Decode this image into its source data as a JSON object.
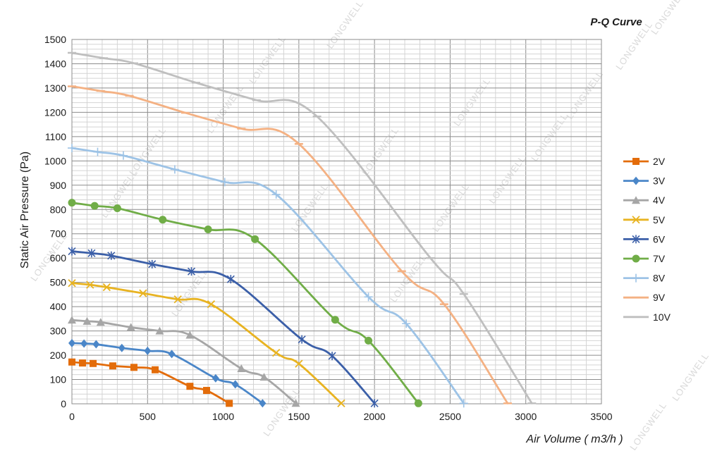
{
  "chart_data": {
    "type": "line",
    "title": "P-Q Curve",
    "xlabel": "Air Volume ( m3/h )",
    "ylabel": "Static Air Pressure  (Pa)",
    "xlim": [
      0,
      3500
    ],
    "ylim": [
      0,
      1500
    ],
    "xticks": [
      0,
      500,
      1000,
      1500,
      2000,
      2500,
      3000,
      3500
    ],
    "yticks": [
      0,
      100,
      200,
      300,
      400,
      500,
      600,
      700,
      800,
      900,
      1000,
      1100,
      1200,
      1300,
      1400,
      1500
    ],
    "grid": true,
    "legend_position": "right",
    "watermark": "LONGWELL",
    "series": [
      {
        "name": "2V",
        "color": "#E36C0A",
        "marker": "square",
        "x": [
          0,
          70,
          140,
          270,
          410,
          550,
          780,
          890,
          1040
        ],
        "y": [
          172,
          168,
          166,
          156,
          150,
          140,
          72,
          55,
          2
        ]
      },
      {
        "name": "3V",
        "color": "#4A86C8",
        "marker": "diamond",
        "x": [
          0,
          80,
          160,
          330,
          500,
          660,
          950,
          1080,
          1260
        ],
        "y": [
          250,
          248,
          245,
          230,
          218,
          205,
          105,
          80,
          2
        ]
      },
      {
        "name": "4V",
        "color": "#A6A6A6",
        "marker": "triangle",
        "x": [
          0,
          100,
          190,
          390,
          580,
          780,
          1120,
          1270,
          1480
        ],
        "y": [
          345,
          340,
          336,
          315,
          300,
          283,
          145,
          110,
          2
        ]
      },
      {
        "name": "5V",
        "color": "#E8B321",
        "marker": "x",
        "x": [
          0,
          120,
          230,
          470,
          700,
          920,
          1350,
          1500,
          1780
        ],
        "y": [
          497,
          490,
          480,
          455,
          430,
          410,
          210,
          165,
          2
        ]
      },
      {
        "name": "6V",
        "color": "#3B5FA8",
        "marker": "star",
        "x": [
          0,
          130,
          260,
          530,
          790,
          1050,
          1520,
          1720,
          2000
        ],
        "y": [
          628,
          620,
          610,
          575,
          545,
          513,
          265,
          197,
          2
        ]
      },
      {
        "name": "7V",
        "color": "#70AD47",
        "marker": "circle",
        "x": [
          0,
          150,
          300,
          600,
          900,
          1210,
          1740,
          1960,
          2290
        ],
        "y": [
          828,
          815,
          805,
          758,
          718,
          678,
          346,
          260,
          2
        ]
      },
      {
        "name": "8V",
        "color": "#9DC3E6",
        "marker": "plus",
        "x": [
          0,
          170,
          340,
          680,
          1010,
          1350,
          1960,
          2210,
          2590
        ],
        "y": [
          1053,
          1037,
          1022,
          965,
          913,
          862,
          440,
          330,
          2
        ]
      },
      {
        "name": "9V",
        "color": "#F4B183",
        "marker": "dash",
        "x": [
          0,
          190,
          380,
          750,
          1120,
          1500,
          2180,
          2460,
          2880
        ],
        "y": [
          1307,
          1288,
          1268,
          1198,
          1133,
          1070,
          546,
          410,
          2
        ]
      },
      {
        "name": "10V",
        "color": "#BFBFBF",
        "marker": "dash",
        "x": [
          0,
          210,
          410,
          820,
          1220,
          1620,
          2370,
          2590,
          3040
        ],
        "y": [
          1445,
          1423,
          1402,
          1322,
          1250,
          1183,
          600,
          452,
          2
        ]
      }
    ]
  }
}
